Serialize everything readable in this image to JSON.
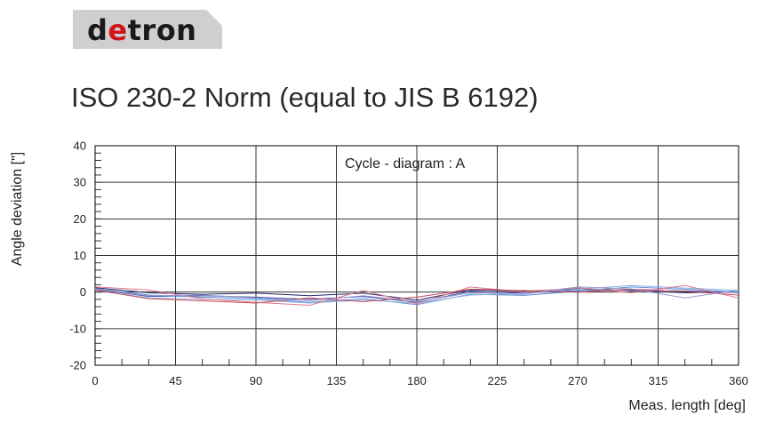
{
  "brand": {
    "logo_prefix": "d",
    "logo_accent": "e",
    "logo_suffix": "tron",
    "accent_color": "#d0161b"
  },
  "page": {
    "title": "ISO 230-2 Norm (equal to JIS B 6192)"
  },
  "chart_data": {
    "type": "line",
    "annotation": "Cycle - diagram : A",
    "xlabel": "Meas. length  [deg]",
    "ylabel": "Angle deviation [\"]",
    "xlim": [
      0,
      360
    ],
    "ylim": [
      -20,
      40
    ],
    "x_ticks": [
      0,
      45,
      90,
      135,
      180,
      225,
      270,
      315,
      360
    ],
    "y_ticks": [
      -20,
      -10,
      0,
      10,
      20,
      30,
      40
    ],
    "grid": true,
    "x": [
      0,
      30,
      60,
      90,
      120,
      150,
      180,
      210,
      240,
      270,
      300,
      330,
      360
    ],
    "series": [
      {
        "color": "#1f2a6b",
        "values": [
          1.2,
          -0.2,
          -0.6,
          -0.3,
          -1.0,
          -0.3,
          -2.2,
          0.6,
          0.2,
          0.9,
          0.4,
          -0.2,
          0.1
        ]
      },
      {
        "color": "#3b4fb0",
        "values": [
          0.8,
          -1.2,
          -1.0,
          -1.4,
          -2.0,
          -1.2,
          -2.8,
          0.2,
          -0.3,
          0.4,
          0.6,
          0.3,
          -0.1
        ]
      },
      {
        "color": "#5b8fd6",
        "values": [
          1.0,
          -0.8,
          -1.4,
          -1.8,
          -2.8,
          -1.8,
          -3.4,
          -0.6,
          -0.9,
          0.2,
          1.4,
          0.8,
          0.0
        ]
      },
      {
        "color": "#8fb4e8",
        "values": [
          0.5,
          -1.6,
          -2.0,
          -2.2,
          -3.0,
          -2.2,
          -3.0,
          -0.8,
          -0.4,
          0.8,
          1.8,
          1.1,
          0.5
        ]
      },
      {
        "color": "#e07a86",
        "values": [
          1.4,
          0.6,
          -1.8,
          -2.8,
          -3.6,
          0.4,
          -3.2,
          1.4,
          0.0,
          1.2,
          -0.2,
          1.8,
          -1.6
        ]
      },
      {
        "color": "#c94a5a",
        "values": [
          0.6,
          -1.8,
          -2.4,
          -3.0,
          -1.6,
          -2.6,
          -1.4,
          0.8,
          0.4,
          0.0,
          0.8,
          0.2,
          -0.8
        ]
      },
      {
        "color": "#9e9bc8",
        "values": [
          0.9,
          -1.0,
          -0.8,
          -1.6,
          -2.4,
          -1.0,
          -2.6,
          -0.2,
          -0.6,
          1.4,
          0.9,
          -1.6,
          0.6
        ]
      }
    ]
  }
}
